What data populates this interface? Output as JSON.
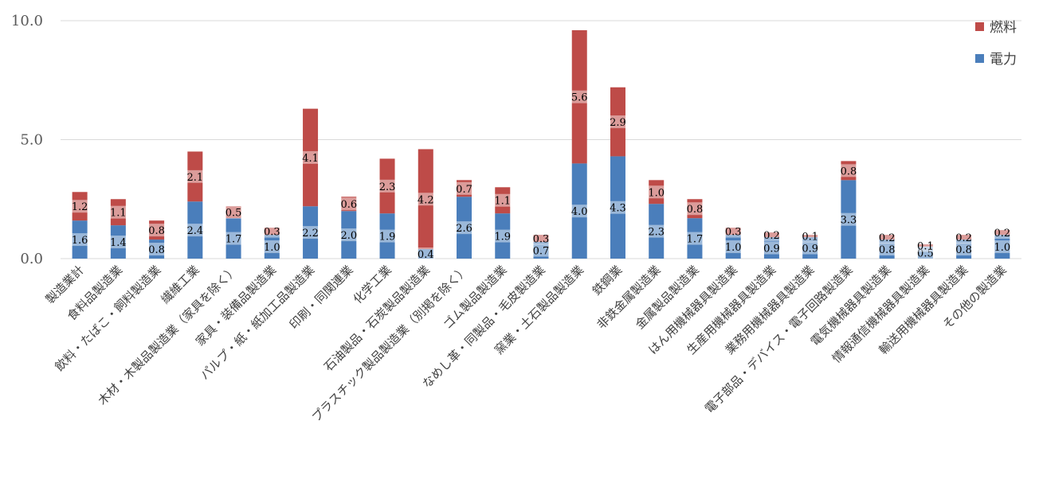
{
  "chart_data": {
    "type": "bar",
    "stacked": true,
    "categories": [
      "製造業計",
      "食料品製造業",
      "飲料・たばこ・飼料製造業",
      "繊維工業",
      "木材・木製品製造業（家具を除く）",
      "家具・装備品製造業",
      "パルプ・紙・紙加工品製造業",
      "印刷・同関連業",
      "化学工業",
      "石油製品・石炭製品製造業",
      "プラスチック製品製造業（別掲を除く）",
      "ゴム製品製造業",
      "なめし革・同製品・毛皮製造業",
      "窯業・土石製品製造業",
      "鉄鋼業",
      "非鉄金属製造業",
      "金属製品製造業",
      "はん用機械器具製造業",
      "生産用機械器具製造業",
      "業務用機械器具製造業",
      "電子部品・デバイス・電子回路製造業",
      "電気機械器具製造業",
      "情報通信機械器具製造業",
      "輸送用機械器具製造業",
      "その他の製造業"
    ],
    "series": [
      {
        "name": "電力",
        "color": "#4a7ebb",
        "values": [
          1.6,
          1.4,
          0.8,
          2.4,
          1.7,
          1.0,
          2.2,
          2.0,
          1.9,
          0.4,
          2.6,
          1.9,
          0.7,
          4.0,
          4.3,
          2.3,
          1.7,
          1.0,
          0.9,
          0.9,
          3.3,
          0.8,
          0.5,
          0.8,
          1.0
        ],
        "labels": [
          "1.6",
          "1.4",
          "0.8",
          "2.4",
          "1.7",
          "1.0",
          "2.2",
          "2.0",
          "1.9",
          "0.4",
          "2.6",
          "1.9",
          "0.7",
          "4.0",
          "4.3",
          "2.3",
          "1.7",
          "1.0",
          "0.9",
          "0.9",
          "3.3",
          "0.8",
          "0.5",
          "0.8",
          "1.0"
        ]
      },
      {
        "name": "燃料",
        "color": "#be4b48",
        "values": [
          1.2,
          1.1,
          0.8,
          2.1,
          0.5,
          0.3,
          4.1,
          0.6,
          2.3,
          4.2,
          0.7,
          1.1,
          0.3,
          5.6,
          2.9,
          1.0,
          0.8,
          0.3,
          0.2,
          0.1,
          0.8,
          0.2,
          0.1,
          0.2,
          0.2
        ],
        "labels": [
          "1.2",
          "1.1",
          "0.8",
          "2.1",
          "0.5",
          "0.3",
          "4.1",
          "0.6",
          "2.3",
          "4.2",
          "0.7",
          "1.1",
          "0.3",
          "5.6",
          "2.9",
          "1.0",
          "0.8",
          "0.3",
          "0.2",
          "0.1",
          "0.8",
          "0.2",
          "0.1",
          "0.2",
          "0.2"
        ]
      }
    ],
    "yticks": [
      "0.0",
      "5.0",
      "10.0"
    ],
    "ylim": [
      0,
      10
    ],
    "grid": true,
    "legend_position": "top-right",
    "title": "",
    "xlabel": "",
    "ylabel": ""
  }
}
